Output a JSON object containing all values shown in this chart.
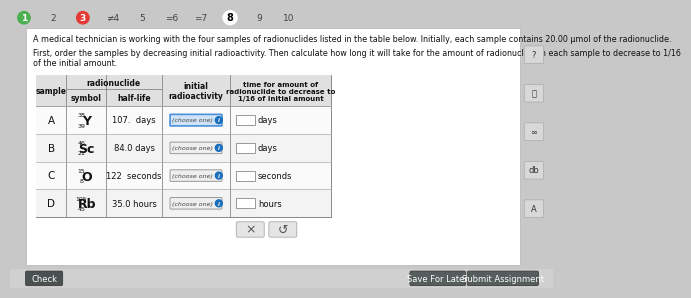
{
  "bg_color": "#c8c8c8",
  "card_color": "#f0f0f0",
  "title1": "A medical technician is working with the four samples of radionuclides listed in the table below. Initially, each sample contains 20.00 μmol of the radionuclide.",
  "title2": "First, order the samples by decreasing initial radioactivity. Then calculate how long it will take for the amount of radionuclide in each sample to decrease to 1/16\nof the initial amount.",
  "rows": [
    {
      "sample": "A",
      "sym_top": "38",
      "sym_mid": "Y",
      "sym_bot": "39",
      "halflife": "107.  days",
      "unit": "days"
    },
    {
      "sample": "B",
      "sym_top": "46",
      "sym_mid": "Sc",
      "sym_bot": "21",
      "halflife": "84.0 days",
      "unit": "days"
    },
    {
      "sample": "C",
      "sym_top": "15",
      "sym_mid": "O",
      "sym_bot": "8",
      "halflife": "122  seconds",
      "unit": "seconds"
    },
    {
      "sample": "D",
      "sym_top": "105",
      "sym_mid": "Rb",
      "sym_bot": "45",
      "halflife": "35.0 hours",
      "unit": "hours"
    }
  ],
  "nav": [
    "1",
    "2",
    "3",
    "4",
    "5",
    "6",
    "7",
    "8",
    "9",
    "10"
  ],
  "nav_green": [
    0
  ],
  "nav_red": [
    2
  ],
  "nav_circle_white": [
    7
  ],
  "nav_prefix_eq": [
    5,
    6
  ],
  "nav_prefix_neq": [
    3,
    4
  ]
}
